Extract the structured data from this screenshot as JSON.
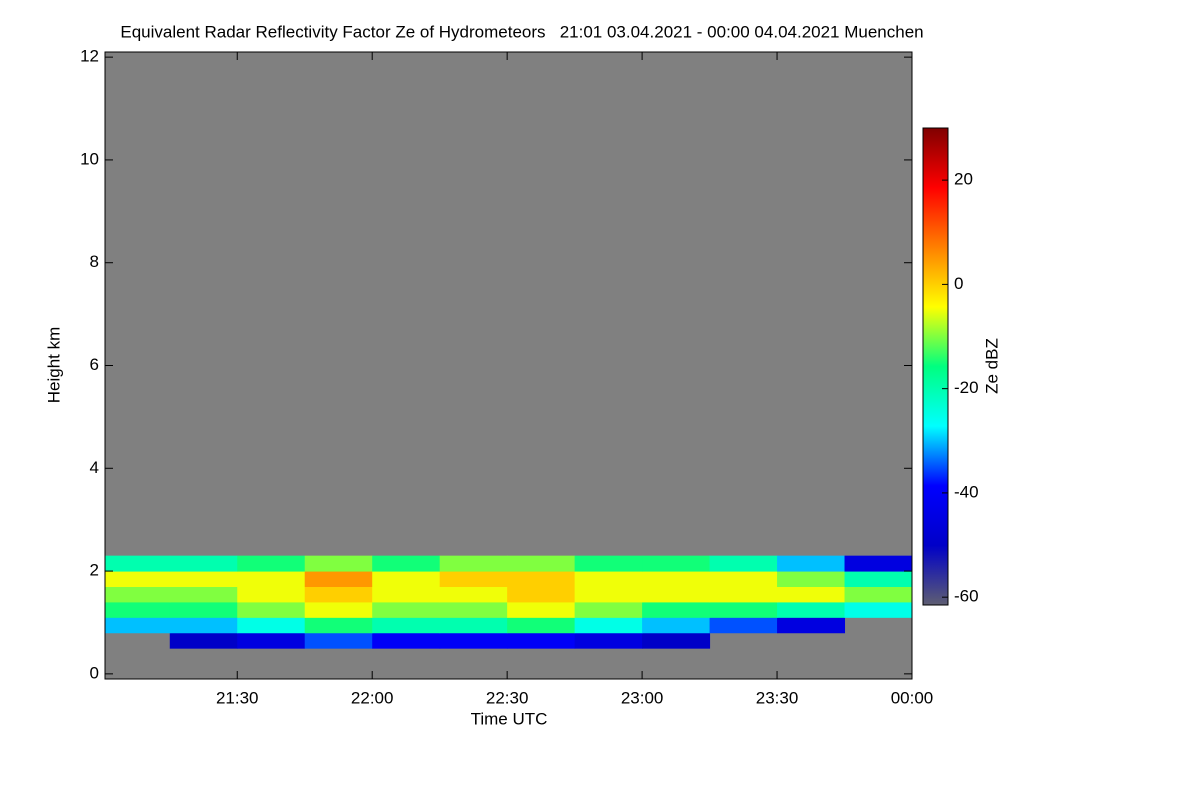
{
  "chart_data": {
    "type": "heatmap",
    "title": "Equivalent Radar Reflectivity Factor Ze of Hydrometeors   21:01 03.04.2021 - 00:00 04.04.2021 Muenchen",
    "x_label": "Time UTC",
    "y_label": "Height km",
    "colorbar_label": "Ze dBZ",
    "xbins": [
      21.01,
      21.25,
      21.5,
      21.75,
      22,
      22.25,
      22.5,
      22.75,
      23,
      23.25,
      23.5,
      23.75,
      24.0
    ],
    "ybins": [
      0.5,
      0.8,
      1.1,
      1.4,
      1.7,
      2.0,
      2.3
    ],
    "z": [
      [
        null,
        -50,
        -45,
        -35,
        -40,
        -40,
        -40,
        -45,
        -50,
        null,
        null,
        null
      ],
      [
        -30,
        -30,
        -25,
        -15,
        -20,
        -20,
        -15,
        -25,
        -30,
        -35,
        -45,
        null
      ],
      [
        -15,
        -15,
        -10,
        -5,
        -10,
        -10,
        -5,
        -10,
        -15,
        -15,
        -20,
        -25
      ],
      [
        -10,
        -10,
        -5,
        0,
        -5,
        -5,
        0,
        -5,
        -5,
        -5,
        -5,
        -10
      ],
      [
        -5,
        -5,
        -5,
        5,
        -5,
        0,
        0,
        -5,
        -5,
        -5,
        -10,
        -20
      ],
      [
        -20,
        -20,
        -15,
        -10,
        -15,
        -10,
        -10,
        -15,
        -15,
        -20,
        -30,
        -45
      ]
    ],
    "xlim": [
      21.01,
      24.0
    ],
    "ylim": [
      -0.1,
      12.1
    ],
    "xticks": [
      {
        "value": 21.5,
        "label": "21:30"
      },
      {
        "value": 22,
        "label": "22:00"
      },
      {
        "value": 22.5,
        "label": "22:30"
      },
      {
        "value": 23,
        "label": "23:00"
      },
      {
        "value": 23.5,
        "label": "23:30"
      },
      {
        "value": 24,
        "label": "00:00"
      }
    ],
    "yticks": [
      0,
      2,
      4,
      6,
      8,
      10,
      12
    ],
    "clim": [
      -61.5,
      30
    ],
    "cticks": [
      -60,
      -40,
      -20,
      0,
      20
    ],
    "colormap": [
      "#5e5e72",
      "#0000c8",
      "#0000ff",
      "#00ffff",
      "#00ff80",
      "#ffff00",
      "#ff8000",
      "#ff0000",
      "#800000"
    ],
    "background": "#808080"
  }
}
